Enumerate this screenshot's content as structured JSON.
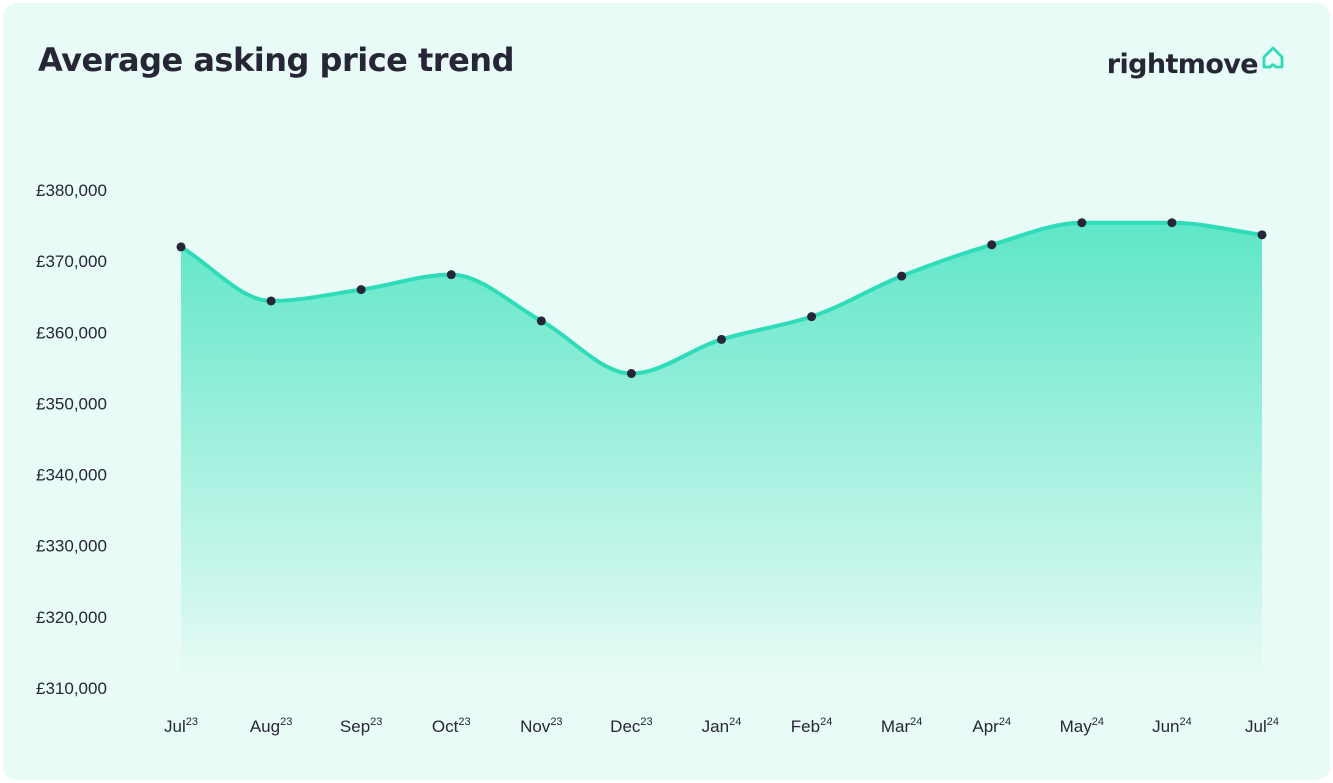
{
  "title": "Average asking price trend",
  "brand": {
    "name": "rightmove",
    "icon": "house-outline-icon"
  },
  "colors": {
    "background": "#e8fbf6",
    "line": "#2fdcb9",
    "fill_top": "#5ee6c7",
    "fill_bottom": "#e8fbf6",
    "point": "#262637",
    "text": "#262637",
    "brand_accent": "#2fdcb9"
  },
  "chart_data": {
    "type": "area",
    "title": "Average asking price trend",
    "xlabel": "",
    "ylabel": "",
    "categories": [
      {
        "month": "Jul",
        "year": "23"
      },
      {
        "month": "Aug",
        "year": "23"
      },
      {
        "month": "Sep",
        "year": "23"
      },
      {
        "month": "Oct",
        "year": "23"
      },
      {
        "month": "Nov",
        "year": "23"
      },
      {
        "month": "Dec",
        "year": "23"
      },
      {
        "month": "Jan",
        "year": "24"
      },
      {
        "month": "Feb",
        "year": "24"
      },
      {
        "month": "Mar",
        "year": "24"
      },
      {
        "month": "Apr",
        "year": "24"
      },
      {
        "month": "May",
        "year": "24"
      },
      {
        "month": "Jun",
        "year": "24"
      },
      {
        "month": "Jul",
        "year": "24"
      }
    ],
    "values": [
      372000,
      364400,
      366000,
      368100,
      361600,
      354200,
      359000,
      362200,
      367900,
      372300,
      375400,
      375400,
      373700
    ],
    "ylim": [
      310000,
      380000
    ],
    "yticks": [
      "£380,000",
      "£370,000",
      "£360,000",
      "£350,000",
      "£340,000",
      "£330,000",
      "£320,000",
      "£310,000"
    ],
    "ytick_values": [
      380000,
      370000,
      360000,
      350000,
      340000,
      330000,
      320000,
      310000
    ],
    "grid": false,
    "smooth": true,
    "markers": true
  }
}
